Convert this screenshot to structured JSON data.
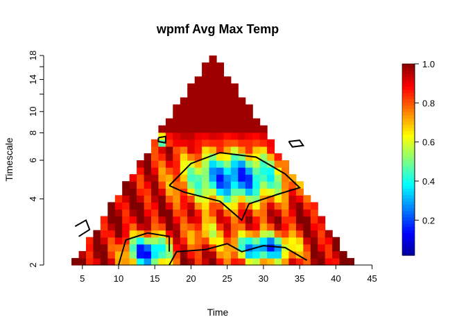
{
  "chart_data": {
    "type": "heatmap",
    "title": "wpmf Avg Max Temp",
    "xlabel": "Time",
    "ylabel": "Timescale",
    "x_ticks": [
      5,
      10,
      15,
      20,
      25,
      30,
      35,
      40,
      45
    ],
    "y_ticks": [
      2,
      4,
      6,
      8,
      10,
      14,
      18
    ],
    "y_minor_ticks": [
      12,
      16
    ],
    "x_range": [
      1,
      46
    ],
    "y_range": [
      2,
      18
    ],
    "y_scale": "log",
    "colorbar": {
      "ticks": [
        "0.2",
        "0.4",
        "0.6",
        "0.8",
        "1.0"
      ],
      "range": [
        0.02,
        1.0
      ],
      "colors": [
        "#00008f",
        "#0000ff",
        "#0080ff",
        "#00ffff",
        "#80ff80",
        "#ffff00",
        "#ff8000",
        "#ff0000",
        "#800000"
      ]
    },
    "value_range": [
      0,
      1
    ],
    "region_shape": "cone of influence (triangle), apex near Time 23 at Timescale 18",
    "pattern": "values near 1.0 at large timescales (above ~7); mixed low values (0.1-0.4) in two patches around Time 15-35 at timescales 2-6; high values near edges",
    "contour_level": "significance contour (black lines)"
  }
}
